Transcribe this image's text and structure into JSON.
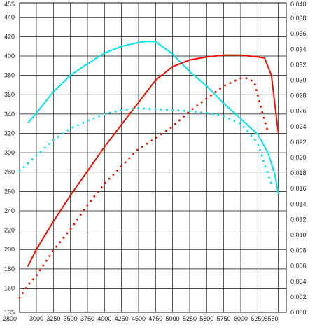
{
  "chart_data": {
    "type": "line",
    "title": "",
    "xlabel": "",
    "ylabel": "",
    "xlim": [
      2800,
      6550
    ],
    "ylim_left": [
      135,
      455
    ],
    "ylim_right": [
      0,
      0.04
    ],
    "grid": true,
    "x_ticks": [
      "2800",
      "3000",
      "3250",
      "3500",
      "3750",
      "4000",
      "4250",
      "4500",
      "4750",
      "5000",
      "5250",
      "5500",
      "5750",
      "6000",
      "6250",
      "6550"
    ],
    "y_ticks_left": [
      "135",
      "160",
      "180",
      "200",
      "220",
      "240",
      "260",
      "280",
      "300",
      "320",
      "340",
      "360",
      "380",
      "400",
      "420",
      "440",
      "455"
    ],
    "y_ticks_right": [
      "0.000",
      "0.002",
      "0.004",
      "0.006",
      "0.008",
      "0.010",
      "0.012",
      "0.014",
      "0.016",
      "0.018",
      "0.020",
      "0.022",
      "0.024",
      "0.026",
      "0.028",
      "0.030",
      "0.032",
      "0.034",
      "0.036",
      "0.038",
      "0.040"
    ],
    "series": [
      {
        "color": "#00e5ee",
        "style": "solid",
        "axis": "left",
        "x": [
          2900,
          3000,
          3250,
          3500,
          3750,
          4000,
          4250,
          4500,
          4600,
          4750,
          5000,
          5250,
          5500,
          5750,
          6000,
          6250,
          6400,
          6500,
          6550
        ],
        "y": [
          331,
          341,
          363,
          380,
          392,
          403,
          410,
          414,
          415,
          415,
          402,
          384,
          369,
          351,
          335,
          319,
          300,
          278,
          258
        ]
      },
      {
        "color": "#ee1100",
        "style": "solid",
        "axis": "left",
        "x": [
          2900,
          3000,
          3250,
          3500,
          3750,
          4000,
          4250,
          4500,
          4750,
          5000,
          5250,
          5500,
          5750,
          5900,
          6000,
          6250,
          6350,
          6450,
          6550
        ],
        "y": [
          183,
          200,
          229,
          256,
          281,
          306,
          329,
          352,
          375,
          389,
          396,
          399,
          401,
          401,
          401,
          399,
          398,
          380,
          321
        ]
      },
      {
        "color": "#00e5ee",
        "style": "dotted",
        "axis": "left",
        "x": [
          2800,
          2900,
          3000,
          3250,
          3500,
          3750,
          4000,
          4250,
          4500,
          4750,
          5000,
          5250,
          5500,
          5750,
          6000,
          6150,
          6250,
          6350,
          6450
        ],
        "y": [
          281,
          289,
          297,
          313,
          325,
          333,
          340,
          344,
          346,
          345,
          344,
          343,
          341,
          338,
          330,
          318,
          310,
          288,
          268
        ]
      },
      {
        "color": "#ee1100",
        "style": "dotted",
        "axis": "left",
        "x": [
          2800,
          2900,
          3000,
          3250,
          3500,
          3750,
          4000,
          4250,
          4500,
          4750,
          5000,
          5250,
          5500,
          5750,
          6000,
          6100,
          6200,
          6300,
          6400
        ],
        "y": [
          150,
          163,
          173,
          199,
          221,
          246,
          268,
          286,
          304,
          315,
          327,
          343,
          356,
          369,
          377,
          377,
          373,
          346,
          321
        ]
      }
    ]
  }
}
